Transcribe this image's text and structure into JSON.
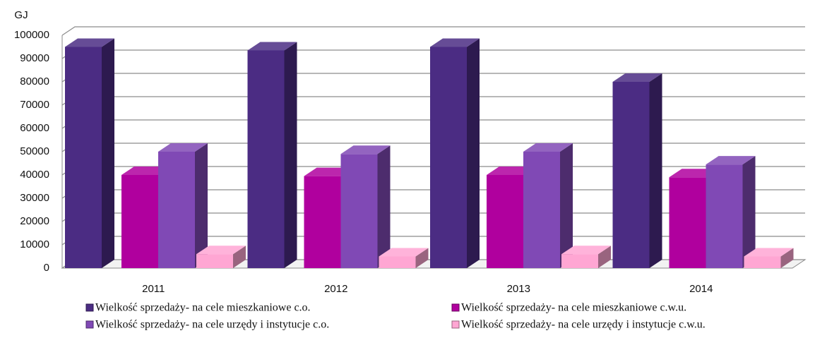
{
  "chart_data": {
    "type": "bar3d",
    "y_label": "GJ",
    "categories": [
      "2011",
      "2012",
      "2013",
      "2014"
    ],
    "series": [
      {
        "name": "Wielkość sprzedaży- na cele mieszkaniowe c.o.",
        "color": "#4b2c83",
        "values": [
          95000,
          93500,
          95000,
          80000
        ]
      },
      {
        "name": "Wielkość sprzedaży- na cele mieszkaniowe c.w.u.",
        "color": "#b0009e",
        "values": [
          40000,
          39500,
          40000,
          39000
        ]
      },
      {
        "name": "Wielkość sprzedaży- na cele urzędy i instytucje c.o.",
        "color": "#8049b5",
        "values": [
          50000,
          49000,
          50000,
          44500
        ]
      },
      {
        "name": "Wielkość sprzedaży- na cele urzędy i instytucje c.w.u.",
        "color": "#ffa6d3",
        "values": [
          6000,
          5000,
          6000,
          5000
        ]
      }
    ],
    "ylim": [
      0,
      100000
    ],
    "yticks": [
      0,
      10000,
      20000,
      30000,
      40000,
      50000,
      60000,
      70000,
      80000,
      90000,
      100000
    ],
    "grid": true
  }
}
